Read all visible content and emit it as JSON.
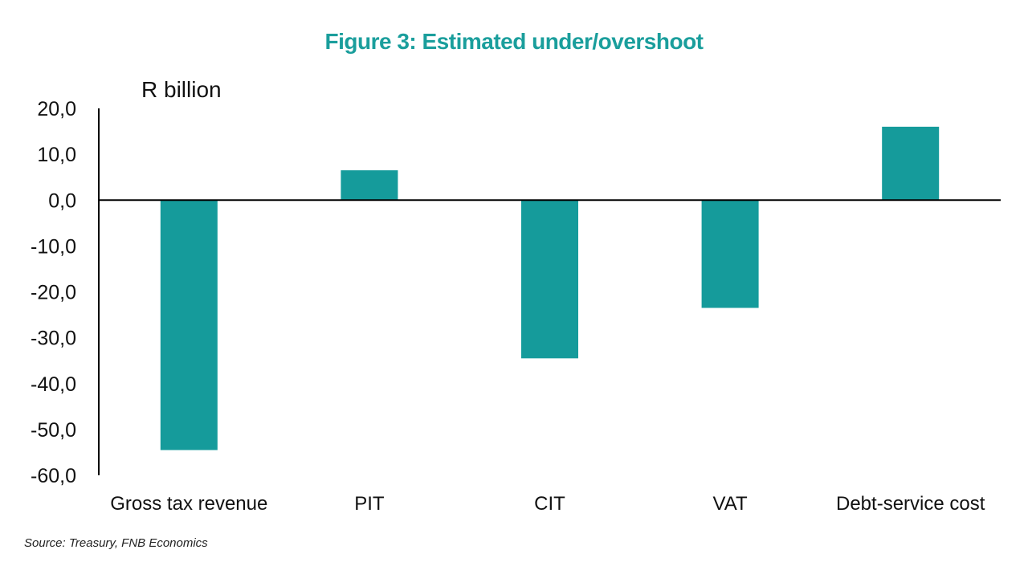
{
  "chart_data": {
    "type": "bar",
    "title": "Figure 3: Estimated under/overshoot",
    "ylabel": "R billion",
    "categories": [
      "Gross tax revenue",
      "PIT",
      "CIT",
      "VAT",
      "Debt-service cost"
    ],
    "values": [
      -54.5,
      6.5,
      -34.5,
      -23.5,
      16.0
    ],
    "ylim": [
      -60,
      20
    ],
    "yticks": [
      "20,0",
      "10,0",
      "0,0",
      "-10,0",
      "-20,0",
      "-30,0",
      "-40,0",
      "-50,0",
      "-60,0"
    ],
    "ytick_values": [
      20,
      10,
      0,
      -10,
      -20,
      -30,
      -40,
      -50,
      -60
    ],
    "bar_color": "#159b9b",
    "title_color": "#1a9e9c",
    "grid": false,
    "legend": "none"
  },
  "source": "Source: Treasury, FNB Economics"
}
